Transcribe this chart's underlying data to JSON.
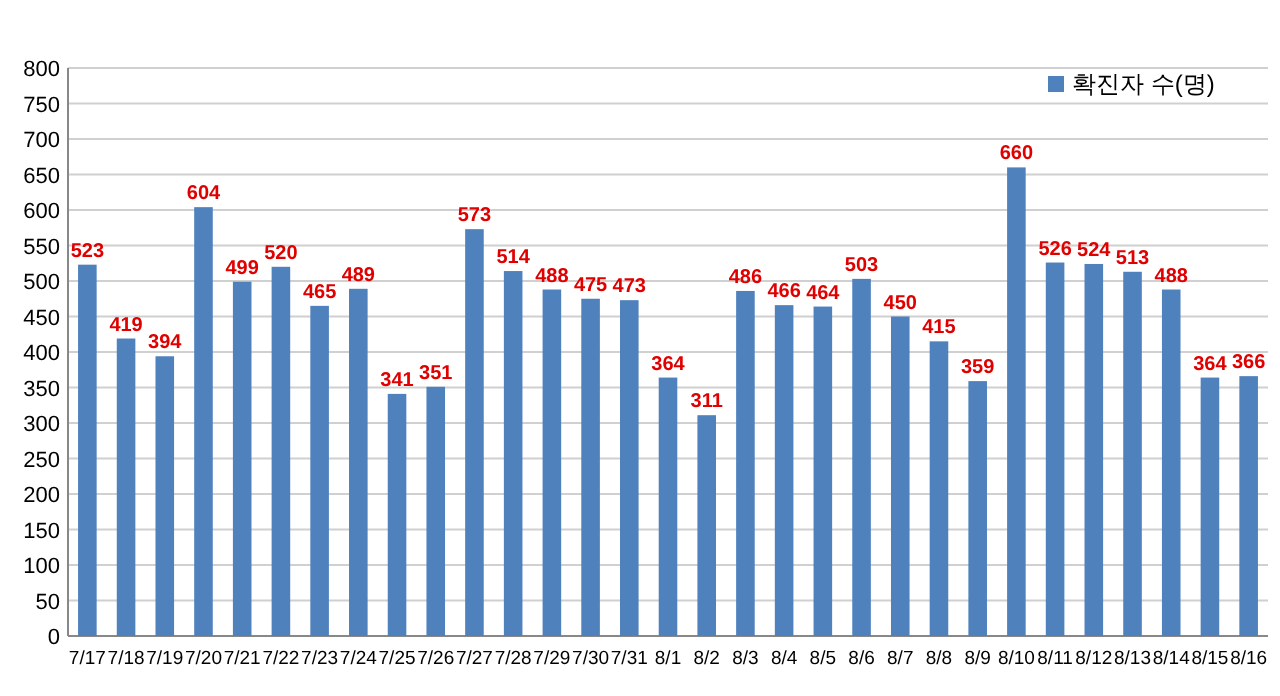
{
  "chart_data": {
    "type": "bar",
    "categories": [
      "7/17",
      "7/18",
      "7/19",
      "7/20",
      "7/21",
      "7/22",
      "7/23",
      "7/24",
      "7/25",
      "7/26",
      "7/27",
      "7/28",
      "7/29",
      "7/30",
      "7/31",
      "8/1",
      "8/2",
      "8/3",
      "8/4",
      "8/5",
      "8/6",
      "8/7",
      "8/8",
      "8/9",
      "8/10",
      "8/11",
      "8/12",
      "8/13",
      "8/14",
      "8/15",
      "8/16"
    ],
    "series": [
      {
        "name": "확진자 수(명)",
        "color": "#4f81bd",
        "values": [
          523,
          419,
          394,
          604,
          499,
          520,
          465,
          489,
          341,
          351,
          573,
          514,
          488,
          475,
          473,
          364,
          311,
          486,
          466,
          464,
          503,
          450,
          415,
          359,
          660,
          526,
          524,
          513,
          488,
          364,
          366
        ]
      }
    ],
    "ylim": [
      0,
      800
    ],
    "yticks": [
      0,
      50,
      100,
      150,
      200,
      250,
      300,
      350,
      400,
      450,
      500,
      550,
      600,
      650,
      700,
      750,
      800
    ],
    "grid": "y",
    "legend": "top right",
    "data_labels": true
  }
}
